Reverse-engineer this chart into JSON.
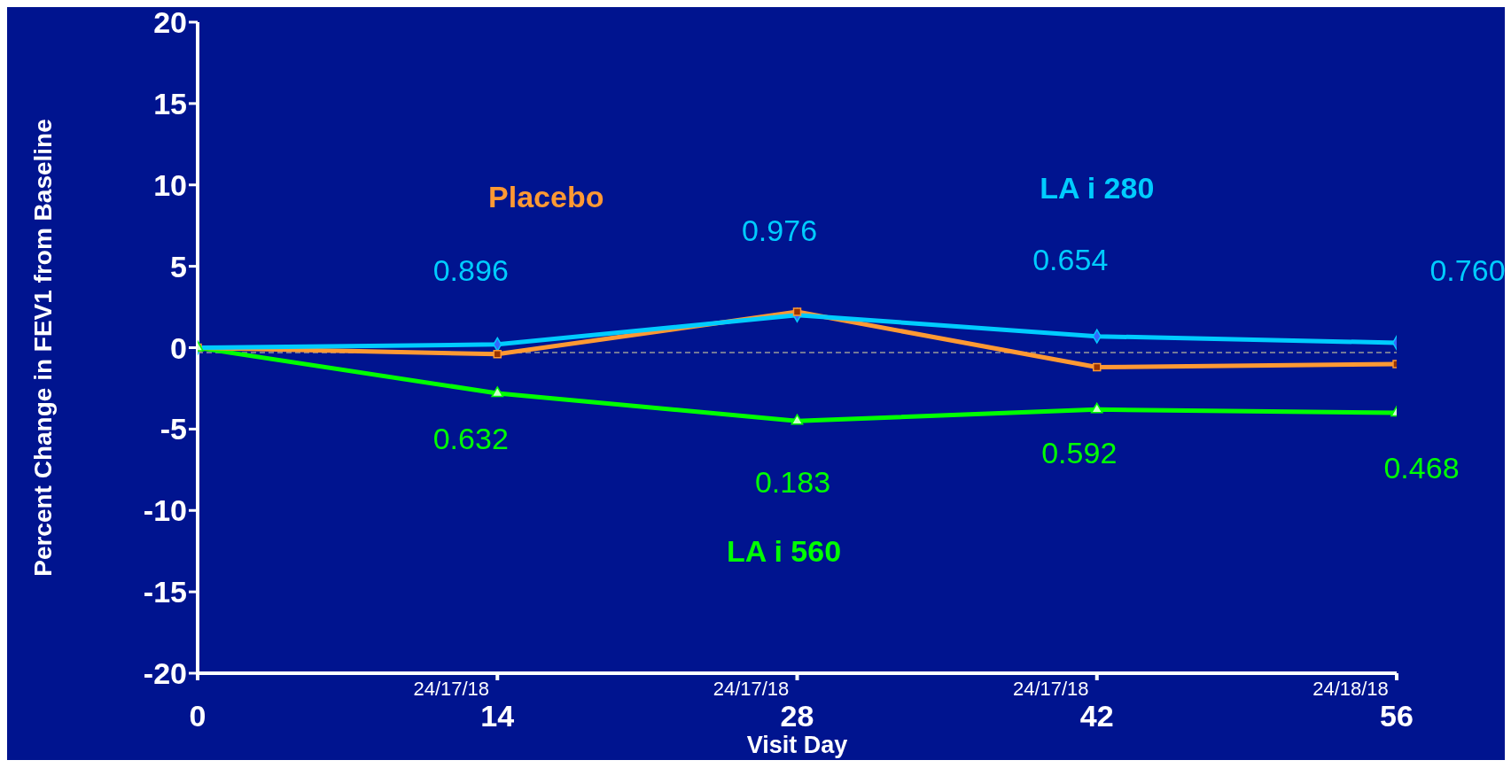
{
  "chart_data": {
    "type": "line",
    "xlabel": "Visit Day",
    "ylabel": "Percent Change in FEV1 from Baseline",
    "x": [
      0,
      14,
      28,
      42,
      56
    ],
    "xlim": [
      0,
      56
    ],
    "xticks": [
      0,
      14,
      28,
      42,
      56
    ],
    "ylim": [
      -20,
      20
    ],
    "yticks": [
      -20,
      -15,
      -10,
      -5,
      0,
      5,
      10,
      15,
      20
    ],
    "line_style": "solid",
    "series": [
      {
        "name": "LA i 280",
        "color": "#00ccff",
        "marker": "diamond",
        "colors": [
          "#3366ff",
          "#3366ff",
          "#3366ff",
          "#3366ff",
          "#3366ff"
        ],
        "values": [
          0,
          0.2,
          2.0,
          0.7,
          0.3
        ]
      },
      {
        "name": "Placebo",
        "color": "#ff9933",
        "marker": "square",
        "colors": [
          "#993300",
          "#993300",
          "#993300",
          "#993300",
          "#993300"
        ],
        "values": [
          0,
          -0.4,
          2.2,
          -1.2,
          -1.0
        ]
      },
      {
        "name": "LA i 560",
        "color": "#00ff00",
        "marker": "triangle",
        "colors": [
          "#ccffcc",
          "#ccffcc",
          "#ccffcc",
          "#ccffcc",
          "#ccffcc"
        ],
        "values": [
          0,
          -2.8,
          -4.5,
          -3.8,
          -4.0
        ]
      }
    ],
    "ref_lines": [
      {
        "axis": "y",
        "value": -0.3,
        "color": "#999999",
        "line_style": "dashed"
      }
    ],
    "annotations": [
      "0.896",
      "0.976",
      "0.654",
      "0.760",
      "0.632",
      "0.183",
      "0.592",
      "0.468",
      "24/17/18",
      "24/17/18",
      "24/17/18",
      "24/18/18"
    ]
  }
}
